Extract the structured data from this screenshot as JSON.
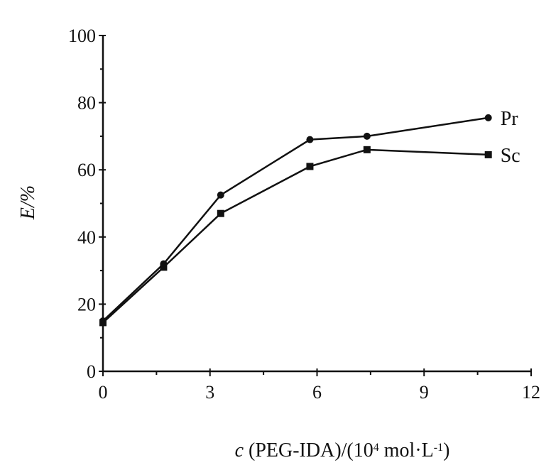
{
  "chart_data": {
    "type": "line",
    "ylabel": "E/%",
    "xlabel_var": "c",
    "xlabel_main": "(PEG-IDA)/(10",
    "xlabel_sup1": "4",
    "xlabel_unit": " mol·L",
    "xlabel_sup2": "-1",
    "xlabel_end": ")",
    "xlim": [
      0,
      12
    ],
    "ylim": [
      0,
      100
    ],
    "x_ticks": [
      0,
      3,
      6,
      9,
      12
    ],
    "y_ticks": [
      0,
      20,
      40,
      60,
      80,
      100
    ],
    "series": [
      {
        "name": "Pr",
        "marker": "circle",
        "x": [
          0,
          1.7,
          3.3,
          5.8,
          7.4,
          10.8
        ],
        "y": [
          15,
          32,
          52.5,
          69,
          70,
          75.5
        ]
      },
      {
        "name": "Sc",
        "marker": "square",
        "x": [
          0,
          1.7,
          3.3,
          5.8,
          7.4,
          10.8
        ],
        "y": [
          14.5,
          31,
          47,
          61,
          66,
          64.5
        ]
      }
    ]
  }
}
